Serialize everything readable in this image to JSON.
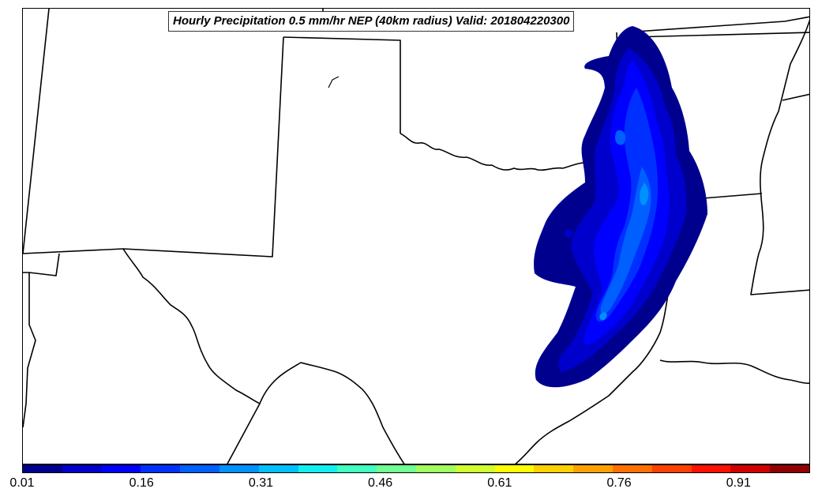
{
  "title": "Hourly Precipitation 0.5 mm/hr NEP (40km radius) Valid: 201804220300",
  "colorbar": {
    "min": 0.01,
    "max": 1.0,
    "tick_labels": [
      "0.01",
      "0.16",
      "0.31",
      "0.46",
      "0.61",
      "0.76",
      "0.91"
    ],
    "colors": [
      "#00008f",
      "#0000cc",
      "#0000ff",
      "#0030ff",
      "#0060ff",
      "#0090ff",
      "#00c0ff",
      "#10f0f0",
      "#40ffc0",
      "#70ff90",
      "#a0ff60",
      "#d0ff30",
      "#ffff00",
      "#ffd000",
      "#ffa000",
      "#ff7000",
      "#ff4000",
      "#ff1000",
      "#d00000",
      "#900000"
    ]
  }
}
